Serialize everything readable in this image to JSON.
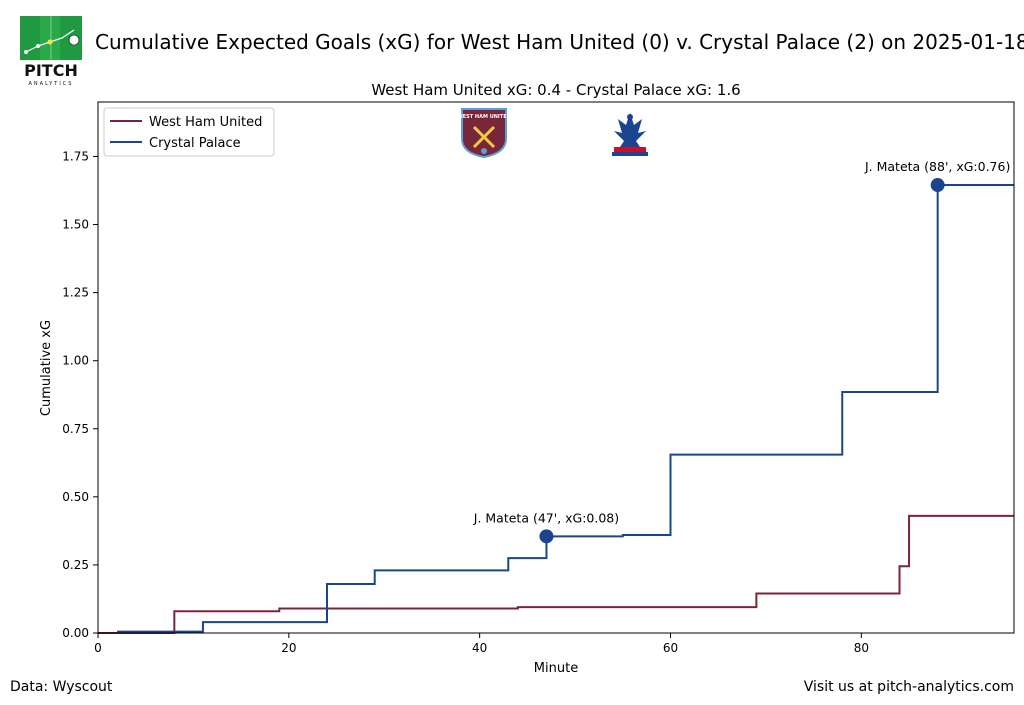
{
  "header": {
    "logo_text": "PITCH",
    "logo_subtext": "ANALYTICS",
    "title": "Cumulative Expected Goals (xG) for West Ham United (0) v. Crystal Palace (2) on 2025-01-18"
  },
  "footer": {
    "source": "Data: Wyscout",
    "site": "Visit us at pitch-analytics.com"
  },
  "chart_data": {
    "type": "line",
    "title": "West Ham United xG: 0.4 - Crystal Palace xG: 1.6",
    "xlabel": "Minute",
    "ylabel": "Cumulative xG",
    "xlim": [
      0,
      96
    ],
    "ylim": [
      0,
      1.95
    ],
    "x_ticks": [
      0,
      20,
      40,
      60,
      80
    ],
    "y_ticks": [
      "0.00",
      "0.25",
      "0.50",
      "0.75",
      "1.00",
      "1.25",
      "1.50",
      "1.75"
    ],
    "grid": false,
    "legend_position": "top-left",
    "series": [
      {
        "name": "West Ham United",
        "color": "#7a263a",
        "step": true,
        "points": [
          [
            0,
            0.0
          ],
          [
            8,
            0.08
          ],
          [
            19,
            0.09
          ],
          [
            44,
            0.095
          ],
          [
            69,
            0.145
          ],
          [
            84,
            0.245
          ],
          [
            85,
            0.43
          ],
          [
            96,
            0.43
          ]
        ]
      },
      {
        "name": "Crystal Palace",
        "color": "#1b458f",
        "step": true,
        "points": [
          [
            2,
            0.005
          ],
          [
            11,
            0.04
          ],
          [
            24,
            0.18
          ],
          [
            29,
            0.23
          ],
          [
            43,
            0.275
          ],
          [
            47,
            0.355
          ],
          [
            55,
            0.36
          ],
          [
            60,
            0.655
          ],
          [
            78,
            0.885
          ],
          [
            88,
            1.645
          ],
          [
            96,
            1.645
          ]
        ]
      }
    ],
    "annotations": [
      {
        "text": "J. Mateta (47', xG:0.08)",
        "x": 47,
        "y": 0.355,
        "series": "Crystal Palace"
      },
      {
        "text": "J. Mateta (88', xG:0.76)",
        "x": 88,
        "y": 1.645,
        "series": "Crystal Palace"
      }
    ],
    "crests": [
      {
        "team": "West Ham United",
        "name": "west-ham-crest",
        "text": "WEST HAM UNITED"
      },
      {
        "team": "Crystal Palace",
        "name": "crystal-palace-crest"
      }
    ]
  }
}
